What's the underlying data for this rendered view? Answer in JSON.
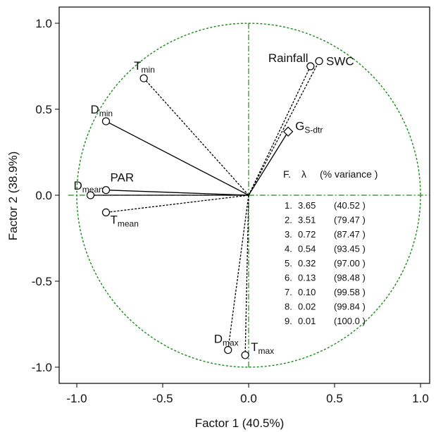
{
  "chart_data": {
    "type": "scatter",
    "xlabel": "Factor 1 (40.5%)",
    "ylabel": "Factor 2 (38.9%)",
    "xlim": [
      -1.05,
      1.05
    ],
    "ylim": [
      -1.1,
      1.1
    ],
    "x_ticks": [
      "-1.0",
      "-0.5",
      "0.0",
      "0.5",
      "1.0"
    ],
    "y_ticks": [
      "1.0",
      "0.5",
      "0.0",
      "-0.5",
      "-1.0"
    ],
    "unit_circle": true,
    "variables": [
      {
        "main": "T",
        "sub": "min",
        "x": -0.61,
        "y": 0.68,
        "line": "dashed",
        "marker": "circle"
      },
      {
        "main": "D",
        "sub": "min",
        "x": -0.83,
        "y": 0.43,
        "line": "solid",
        "marker": "circle"
      },
      {
        "main": "PAR",
        "sub": "",
        "x": -0.83,
        "y": 0.03,
        "line": "solid",
        "marker": "circle"
      },
      {
        "main": "D",
        "sub": "mean",
        "x": -0.92,
        "y": 0.0,
        "line": "solid",
        "marker": "circle"
      },
      {
        "main": "T",
        "sub": "mean",
        "x": -0.83,
        "y": -0.1,
        "line": "dashed",
        "marker": "circle"
      },
      {
        "main": "Rainfall",
        "sub": "",
        "x": 0.36,
        "y": 0.75,
        "line": "dashed",
        "marker": "circle"
      },
      {
        "main": "SWC",
        "sub": "",
        "x": 0.41,
        "y": 0.78,
        "line": "dashed",
        "marker": "circle"
      },
      {
        "main": "G",
        "sub": "S-dtr",
        "x": 0.23,
        "y": 0.37,
        "line": "solid",
        "marker": "diamond"
      },
      {
        "main": "D",
        "sub": "max",
        "x": -0.12,
        "y": -0.9,
        "line": "dashed",
        "marker": "circle"
      },
      {
        "main": "T",
        "sub": "max",
        "x": -0.02,
        "y": -0.93,
        "line": "dashed",
        "marker": "circle"
      }
    ],
    "eigen_table": {
      "header_f": "F.",
      "header_lambda": "λ",
      "header_variance": "(% variance )",
      "rows": [
        {
          "f": "1.",
          "lambda": "3.65",
          "variance": "(40.52 )"
        },
        {
          "f": "2.",
          "lambda": "3.51",
          "variance": "(79.47 )"
        },
        {
          "f": "3.",
          "lambda": "0.72",
          "variance": "(87.47 )"
        },
        {
          "f": "4.",
          "lambda": "0.54",
          "variance": "(93.45 )"
        },
        {
          "f": "5.",
          "lambda": "0.32",
          "variance": "(97.00 )"
        },
        {
          "f": "6.",
          "lambda": "0.13",
          "variance": "(98.48 )"
        },
        {
          "f": "7.",
          "lambda": "0.10",
          "variance": "(99.58 )"
        },
        {
          "f": "8.",
          "lambda": "0.02",
          "variance": "(99.84 )"
        },
        {
          "f": "9.",
          "lambda": "0.01",
          "variance": "(100.0 )"
        }
      ]
    },
    "colors": {
      "circle": "#1a8a1a",
      "axes": "#1a8a1a",
      "vectors": "#000000",
      "frame": "#000000"
    }
  }
}
